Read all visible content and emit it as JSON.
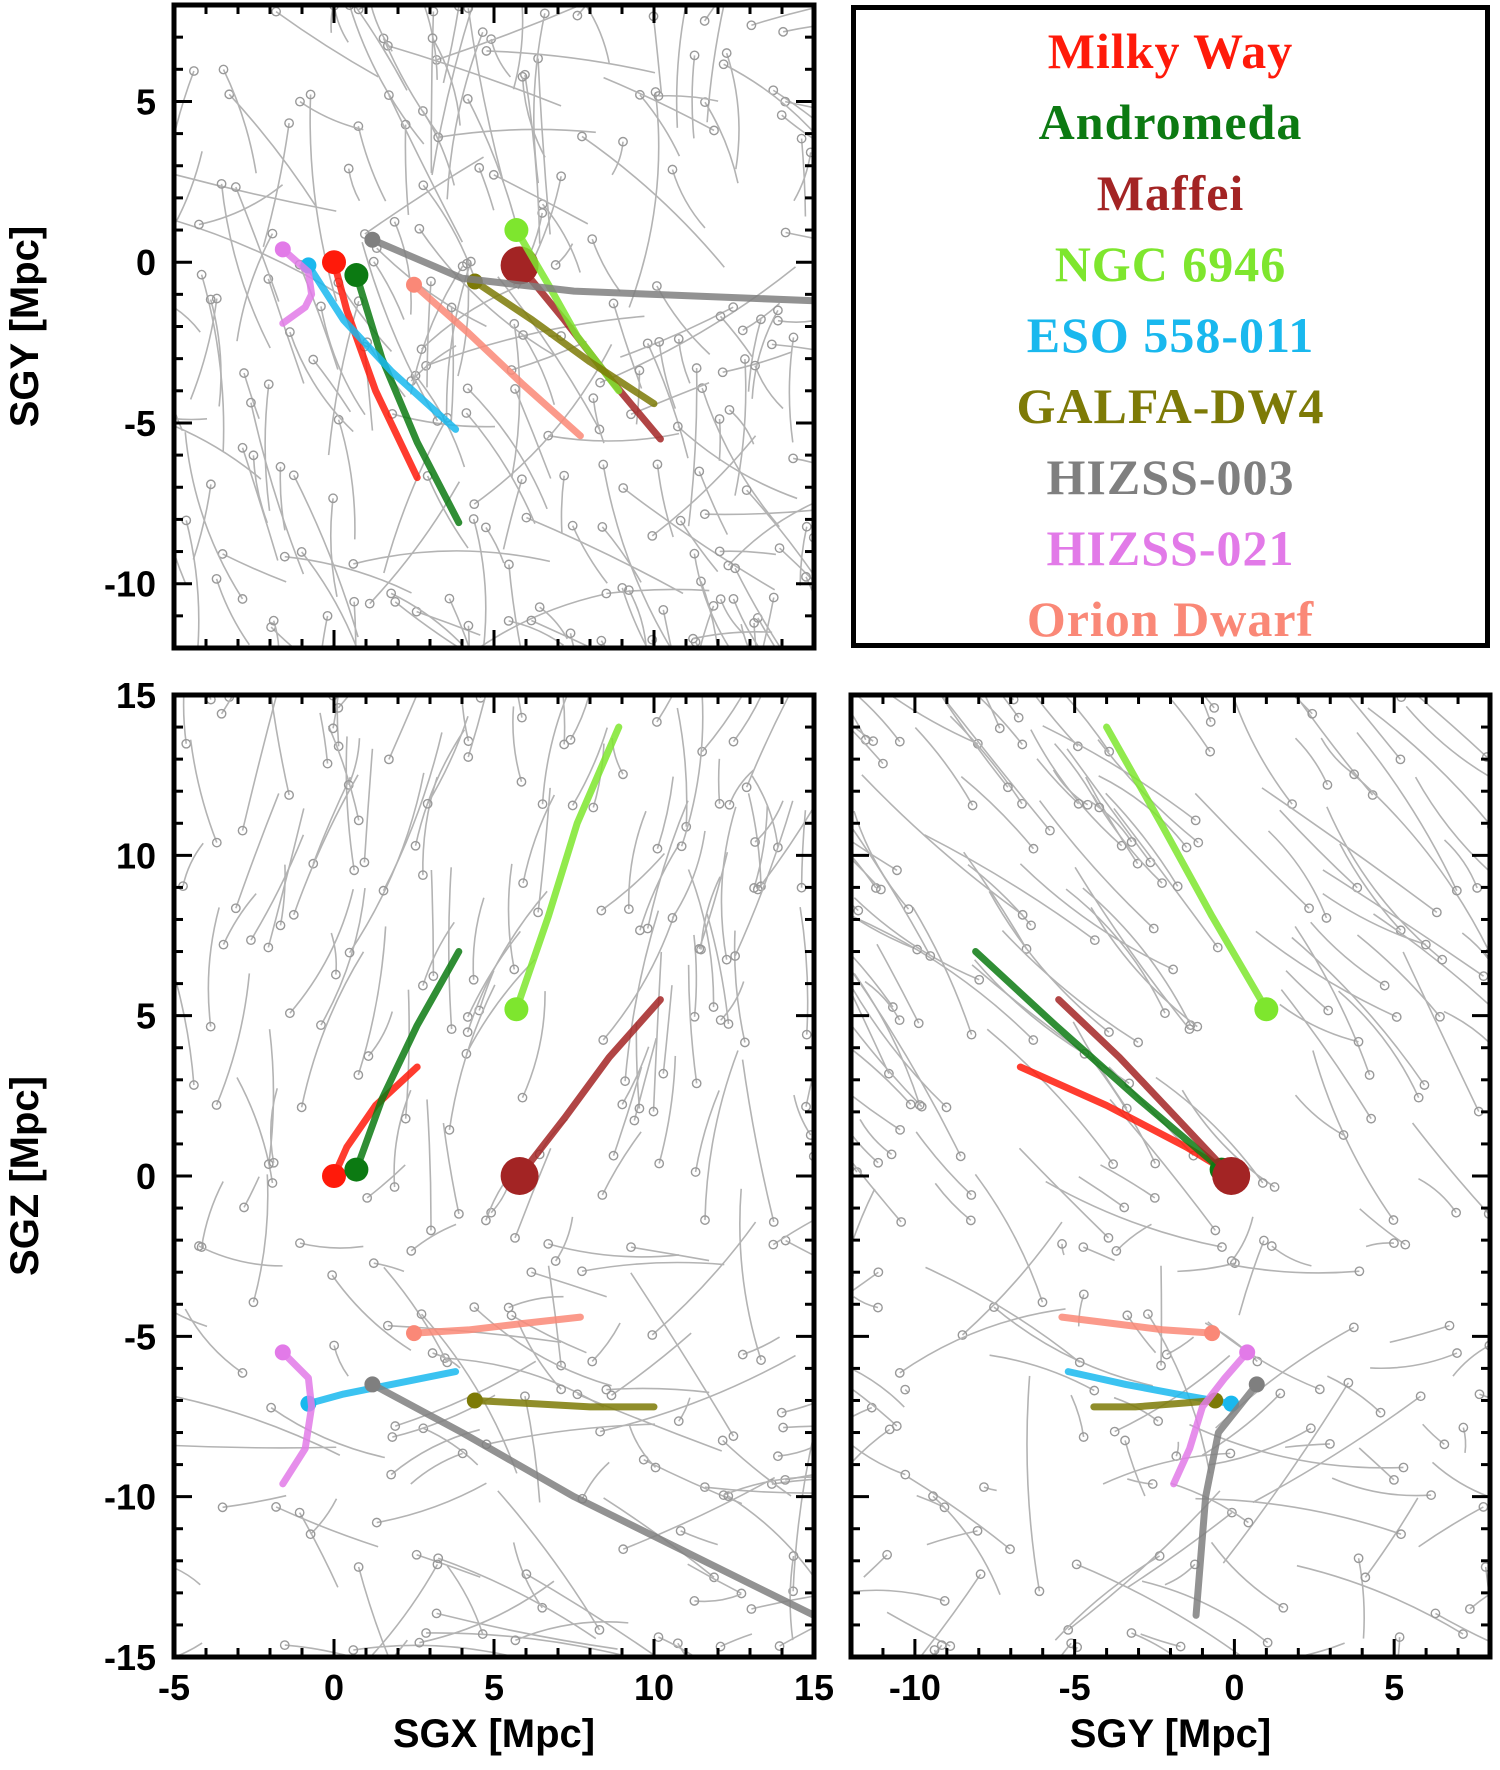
{
  "chart_data": [
    {
      "type": "line",
      "panel": "top-left",
      "xlabel": "",
      "ylabel": "SGY [Mpc]",
      "xlim": [
        -5,
        15
      ],
      "ylim": [
        -12,
        8
      ],
      "xticks": [],
      "yticks": [
        -10,
        -5,
        0,
        5
      ],
      "xdim": "SGX",
      "ydim": "SGY"
    },
    {
      "type": "line",
      "panel": "bottom-left",
      "xlabel": "SGX [Mpc]",
      "ylabel": "SGZ [Mpc]",
      "xlim": [
        -5,
        15
      ],
      "ylim": [
        -15,
        15
      ],
      "xticks": [
        -5,
        0,
        5,
        10,
        15
      ],
      "yticks": [
        -15,
        -10,
        -5,
        0,
        5,
        10,
        15
      ],
      "xdim": "SGX",
      "ydim": "SGZ"
    },
    {
      "type": "line",
      "panel": "bottom-right",
      "xlabel": "SGY [Mpc]",
      "ylabel": "",
      "xlim": [
        -12,
        8
      ],
      "ylim": [
        -15,
        15
      ],
      "xticks": [
        -10,
        -5,
        0,
        5
      ],
      "yticks": [],
      "xdim": "SGY",
      "ydim": "SGZ"
    }
  ],
  "legend": {
    "placement": "top-right",
    "entries": [
      {
        "name": "Milky Way",
        "color": "#ff1a0a"
      },
      {
        "name": "Andromeda",
        "color": "#0c7a12"
      },
      {
        "name": "Maffei",
        "color": "#a32424"
      },
      {
        "name": "NGC 6946",
        "color": "#7ee62e"
      },
      {
        "name": "ESO 558-011",
        "color": "#19b8ee"
      },
      {
        "name": "GALFA-DW4",
        "color": "#7d7a06"
      },
      {
        "name": "HIZSS-003",
        "color": "#7f7f7f"
      },
      {
        "name": "HIZSS-021",
        "color": "#e27ae8"
      },
      {
        "name": "Orion Dwarf",
        "color": "#fa8877"
      }
    ]
  },
  "highlighted_orbits": [
    {
      "name": "Milky Way",
      "color": "#ff1a0a",
      "today": [
        0,
        0,
        0
      ],
      "past": [
        [
          0.4,
          -1.5,
          0.9
        ],
        [
          1.3,
          -4.0,
          2.2
        ],
        [
          2.6,
          -6.7,
          3.4
        ]
      ],
      "marker": "large"
    },
    {
      "name": "Andromeda",
      "color": "#0c7a12",
      "today": [
        0.7,
        -0.4,
        0.2
      ],
      "past": [
        [
          1.5,
          -3.0,
          2.4
        ],
        [
          2.6,
          -5.6,
          4.7
        ],
        [
          3.9,
          -8.1,
          7.0
        ]
      ],
      "marker": "large"
    },
    {
      "name": "Maffei",
      "color": "#a32424",
      "today": [
        5.8,
        -0.1,
        0.0
      ],
      "past": [
        [
          7.2,
          -1.8,
          1.8
        ],
        [
          8.6,
          -3.6,
          3.7
        ],
        [
          10.2,
          -5.5,
          5.5
        ]
      ],
      "marker": "xlarge"
    },
    {
      "name": "NGC 6946",
      "color": "#7ee62e",
      "today": [
        5.7,
        1.0,
        5.2
      ],
      "past": [
        [
          6.7,
          -0.7,
          8.1
        ],
        [
          7.6,
          -2.3,
          11.0
        ],
        [
          8.9,
          -4.0,
          14.0
        ]
      ],
      "marker": "large"
    },
    {
      "name": "ESO 558-011",
      "color": "#19b8ee",
      "today": [
        -0.8,
        -0.1,
        -7.1
      ],
      "past": [
        [
          0.3,
          -1.8,
          -6.8
        ],
        [
          1.8,
          -3.4,
          -6.5
        ],
        [
          3.8,
          -5.2,
          -6.1
        ]
      ],
      "marker": "small"
    },
    {
      "name": "GALFA-DW4",
      "color": "#7d7a06",
      "today": [
        4.4,
        -0.6,
        -7.0
      ],
      "past": [
        [
          6.2,
          -1.8,
          -7.1
        ],
        [
          8.0,
          -3.1,
          -7.2
        ],
        [
          10.0,
          -4.4,
          -7.2
        ]
      ],
      "marker": "small"
    },
    {
      "name": "HIZSS-003",
      "color": "#7f7f7f",
      "today": [
        1.2,
        0.7,
        -6.5
      ],
      "past": [
        [
          4.0,
          -0.5,
          -8.0
        ],
        [
          7.5,
          -0.9,
          -10.0
        ],
        [
          15.0,
          -1.2,
          -13.7
        ]
      ],
      "marker": "small"
    },
    {
      "name": "HIZSS-021",
      "color": "#e27ae8",
      "today": [
        -1.6,
        0.4,
        -5.5
      ],
      "past": [
        [
          -0.8,
          -0.3,
          -6.3
        ],
        [
          -0.7,
          -1.0,
          -7.2
        ],
        [
          -0.9,
          -1.4,
          -8.5
        ],
        [
          -1.6,
          -1.9,
          -9.6
        ]
      ],
      "marker": "small"
    },
    {
      "name": "Orion Dwarf",
      "color": "#fa8877",
      "today": [
        2.5,
        -0.7,
        -4.9
      ],
      "past": [
        [
          4.2,
          -2.2,
          -4.8
        ],
        [
          5.9,
          -3.8,
          -4.6
        ],
        [
          7.7,
          -5.4,
          -4.4
        ]
      ],
      "marker": "small"
    }
  ],
  "background_orbits": {
    "color": "#b3b3b3",
    "count": 240
  }
}
